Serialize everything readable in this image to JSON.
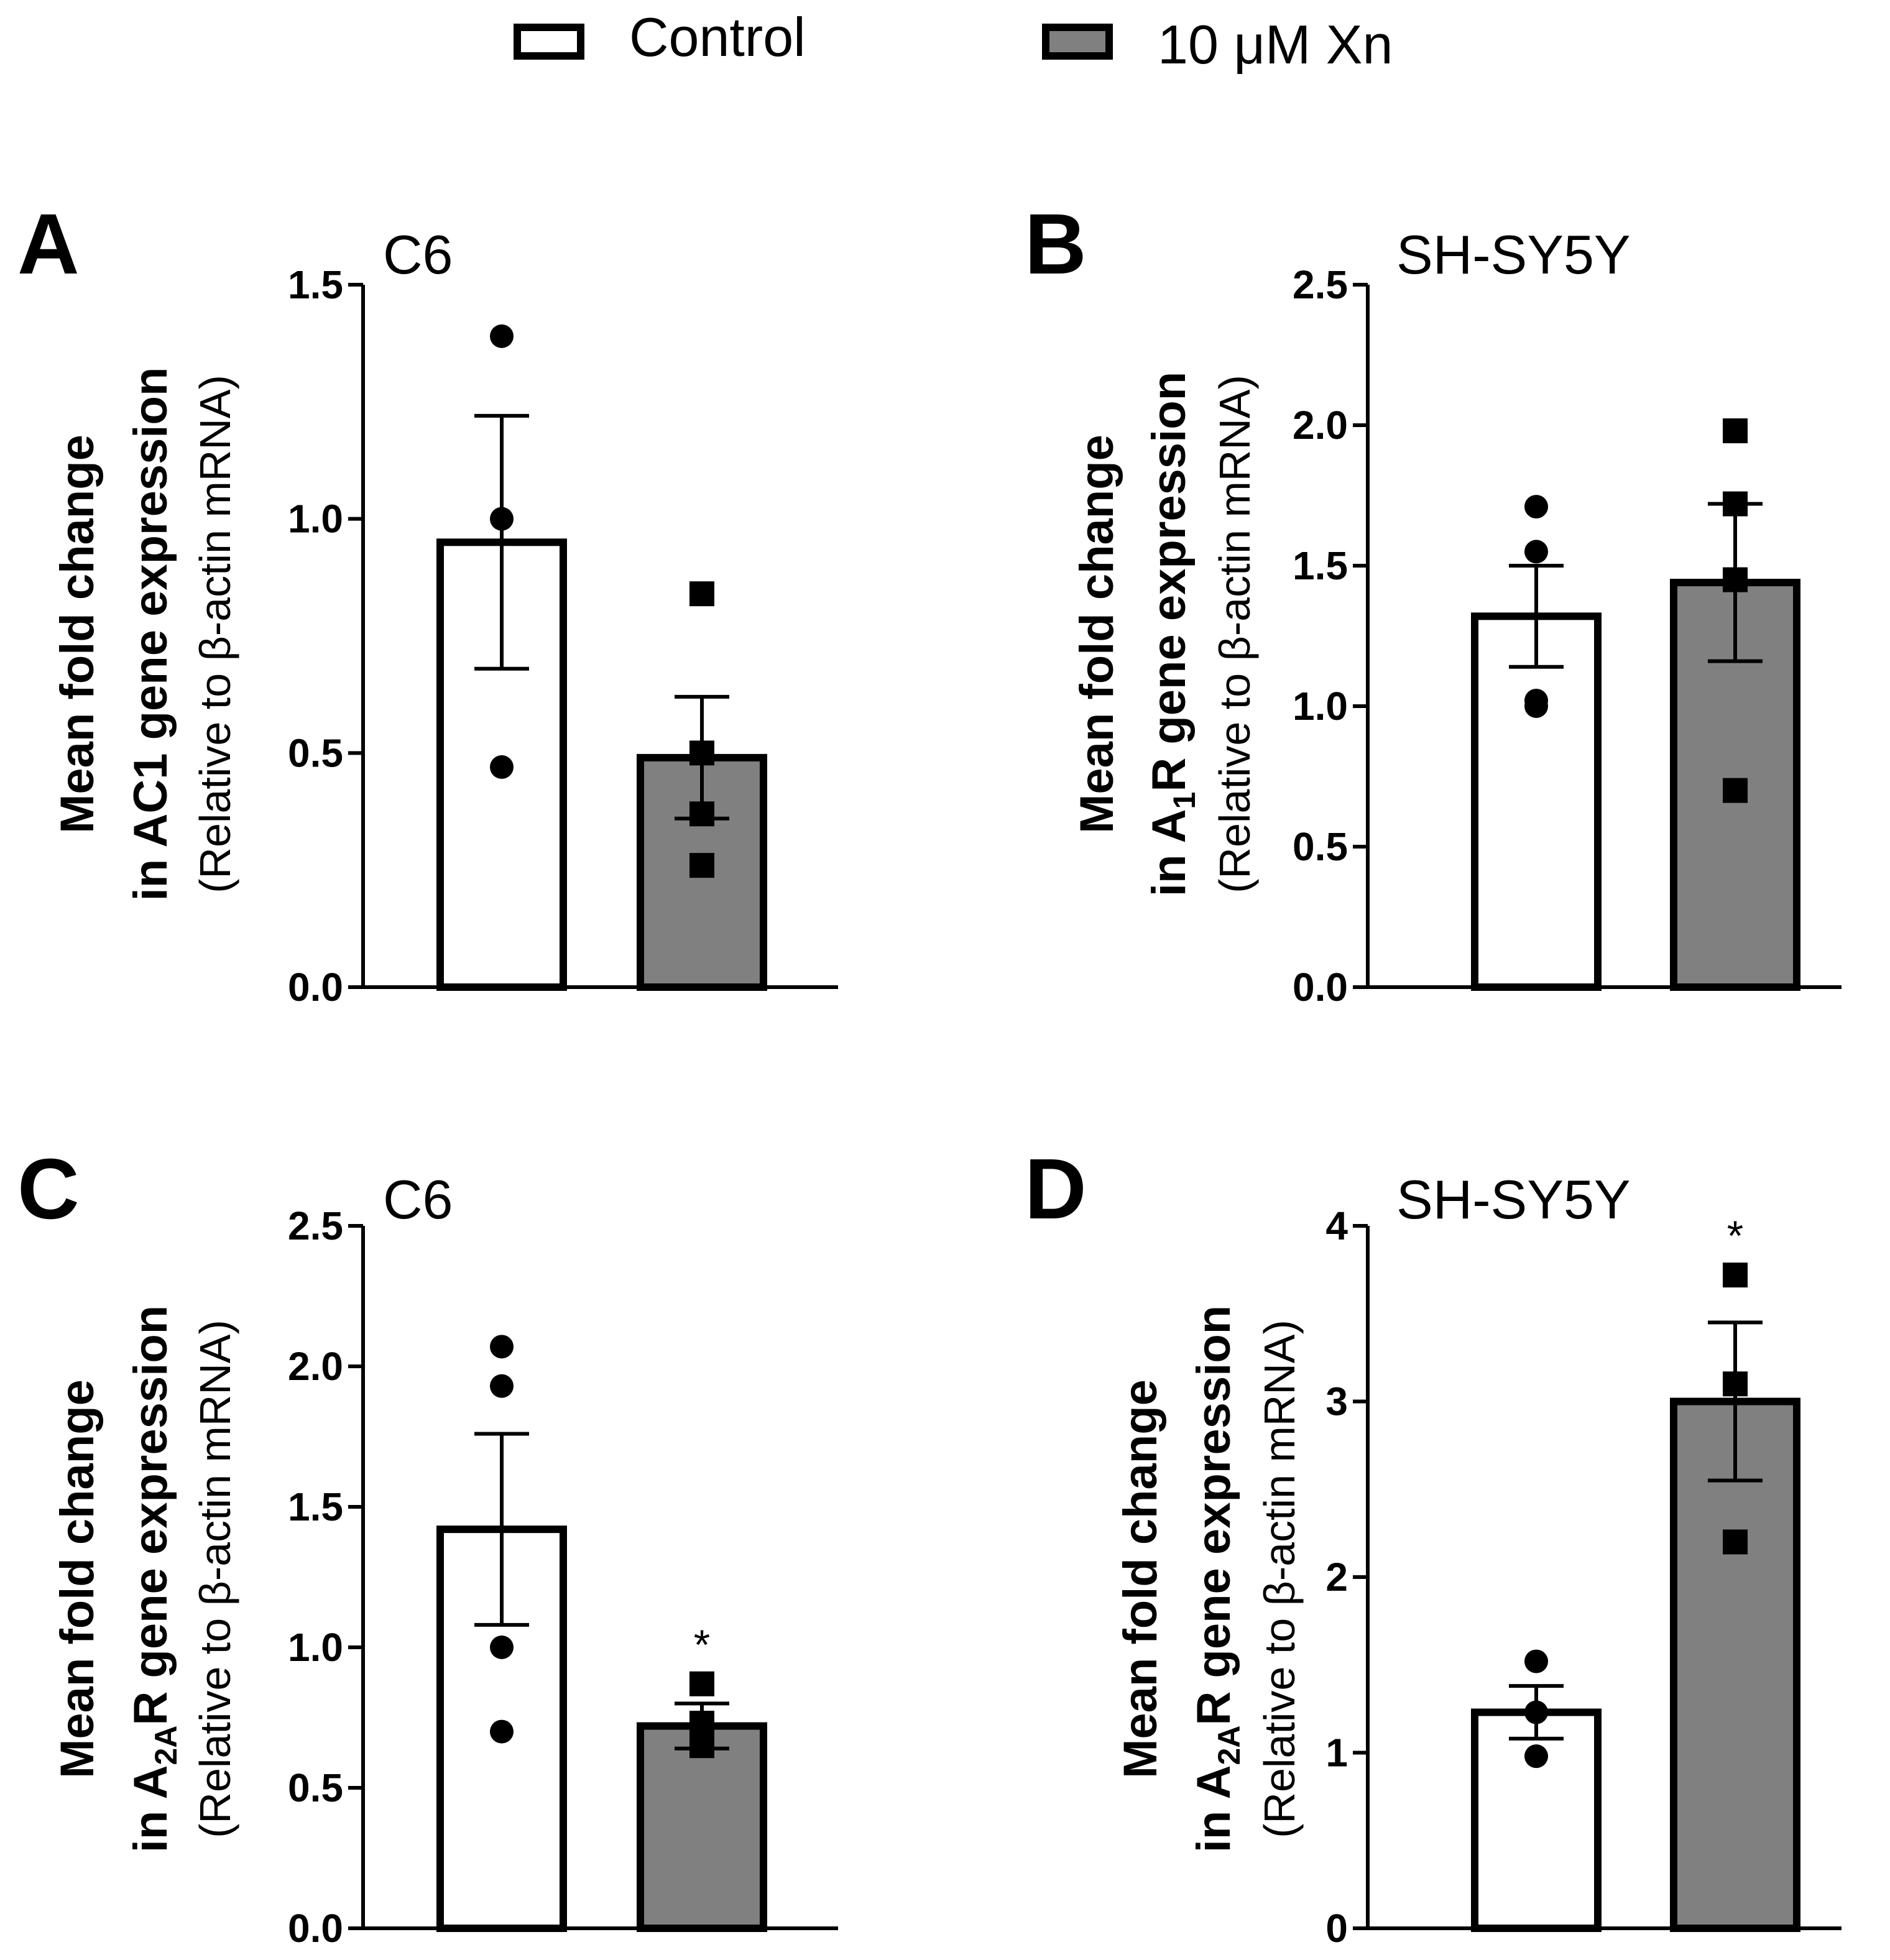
{
  "legend": {
    "items": [
      {
        "label": "Control",
        "color": "#ffffff"
      },
      {
        "label": "10 μM Xn",
        "color": "#808080"
      }
    ]
  },
  "colors": {
    "control": "#ffffff",
    "treated": "#808080",
    "stroke": "#000000"
  },
  "chart_data": [
    {
      "id": "A",
      "type": "bar",
      "letter": "A",
      "title": "C6",
      "ylabel": {
        "bold_prefix": "in ",
        "bold_main": "AC1",
        "sub": "",
        "bold_suffix": " gene expression",
        "line1": "Mean fold change",
        "line3": "(Relative to β-actin mRNA)"
      },
      "ylim": [
        0,
        1.5
      ],
      "ticks": [
        0.0,
        0.5,
        1.0,
        1.5
      ],
      "tick_labels": [
        "0.0",
        "0.5",
        "1.0",
        "1.5"
      ],
      "series": [
        {
          "name": "Control",
          "value": 0.95,
          "sem": 0.27,
          "points": [
            1.39,
            1.0,
            0.47
          ],
          "marker": "circle",
          "sig": ""
        },
        {
          "name": "10 μM Xn",
          "value": 0.49,
          "sem": 0.13,
          "points": [
            0.84,
            0.5,
            0.37,
            0.26
          ],
          "marker": "square",
          "sig": ""
        }
      ]
    },
    {
      "id": "B",
      "type": "bar",
      "letter": "B",
      "title": "SH-SY5Y",
      "ylabel": {
        "bold_prefix": "in ",
        "bold_main": "A",
        "sub": "1",
        "bold_suffix": "R gene expression",
        "line1": "Mean fold change",
        "line3": "(Relative to β-actin mRNA)"
      },
      "ylim": [
        0,
        2.5
      ],
      "ticks": [
        0.0,
        0.5,
        1.0,
        1.5,
        2.0,
        2.5
      ],
      "tick_labels": [
        "0.0",
        "0.5",
        "1.0",
        "1.5",
        "2.0",
        "2.5"
      ],
      "series": [
        {
          "name": "Control",
          "value": 1.32,
          "sem": 0.18,
          "points": [
            1.71,
            1.55,
            1.02,
            1.0
          ],
          "marker": "circle",
          "sig": ""
        },
        {
          "name": "10 μM Xn",
          "value": 1.44,
          "sem": 0.28,
          "points": [
            1.98,
            1.72,
            1.45,
            0.7
          ],
          "marker": "square",
          "sig": ""
        }
      ]
    },
    {
      "id": "C",
      "type": "bar",
      "letter": "C",
      "title": "C6",
      "ylabel": {
        "bold_prefix": "in ",
        "bold_main": "A",
        "sub": "2A",
        "bold_suffix": "R gene expression",
        "line1": "Mean fold change",
        "line3": "(Relative to β-actin mRNA)"
      },
      "ylim": [
        0,
        2.5
      ],
      "ticks": [
        0.0,
        0.5,
        1.0,
        1.5,
        2.0,
        2.5
      ],
      "tick_labels": [
        "0.0",
        "0.5",
        "1.0",
        "1.5",
        "2.0",
        "2.5"
      ],
      "series": [
        {
          "name": "Control",
          "value": 1.42,
          "sem": 0.34,
          "points": [
            2.07,
            1.93,
            1.0,
            0.7
          ],
          "marker": "circle",
          "sig": ""
        },
        {
          "name": "10 μM Xn",
          "value": 0.72,
          "sem": 0.08,
          "points": [
            0.87,
            0.73,
            0.65
          ],
          "marker": "square",
          "sig": "*"
        }
      ]
    },
    {
      "id": "D",
      "type": "bar",
      "letter": "D",
      "title": "SH-SY5Y",
      "ylabel": {
        "bold_prefix": "in ",
        "bold_main": "A",
        "sub": "2A",
        "bold_suffix": "R gene expression",
        "line1": "Mean fold change",
        "line3": "(Relative to β-actin mRNA)"
      },
      "ylim": [
        0,
        4
      ],
      "ticks": [
        0,
        1,
        2,
        3,
        4
      ],
      "tick_labels": [
        "0",
        "1",
        "2",
        "3",
        "4"
      ],
      "series": [
        {
          "name": "Control",
          "value": 1.23,
          "sem": 0.15,
          "points": [
            1.52,
            1.23,
            0.98
          ],
          "marker": "circle",
          "sig": ""
        },
        {
          "name": "10 μM Xn",
          "value": 3.0,
          "sem": 0.45,
          "points": [
            3.72,
            3.1,
            2.2
          ],
          "marker": "square",
          "sig": "*"
        }
      ]
    }
  ]
}
